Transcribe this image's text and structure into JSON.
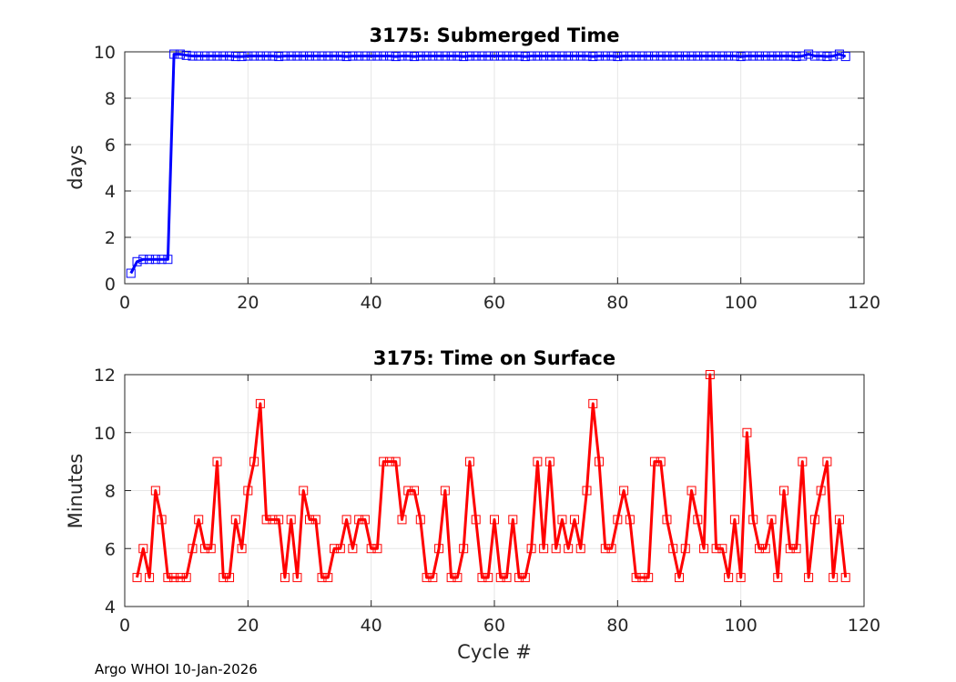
{
  "footer_text": "Argo WHOI 10-Jan-2026",
  "colors": {
    "submerged": "#0000ff",
    "surface": "#ff0000",
    "grid": "#e6e6e6",
    "axis": "#262626"
  },
  "chart_data": [
    {
      "type": "line",
      "title": "3175: Submerged Time",
      "xlabel": "",
      "ylabel": "days",
      "xlim": [
        0,
        120
      ],
      "ylim": [
        0,
        10
      ],
      "xticks": [
        0,
        20,
        40,
        60,
        80,
        100,
        120
      ],
      "yticks": [
        0,
        2,
        4,
        6,
        8,
        10
      ],
      "grid": true,
      "marker": "square",
      "series": [
        {
          "name": "Submerged Time",
          "color": "#0000ff",
          "x": [
            1,
            2,
            3,
            4,
            5,
            6,
            7,
            8,
            9,
            10,
            11,
            12,
            13,
            14,
            15,
            16,
            17,
            18,
            19,
            20,
            21,
            22,
            23,
            24,
            25,
            26,
            27,
            28,
            29,
            30,
            31,
            32,
            33,
            34,
            35,
            36,
            37,
            38,
            39,
            40,
            41,
            42,
            43,
            44,
            45,
            46,
            47,
            48,
            49,
            50,
            51,
            52,
            53,
            54,
            55,
            56,
            57,
            58,
            59,
            60,
            61,
            62,
            63,
            64,
            65,
            66,
            67,
            68,
            69,
            70,
            71,
            72,
            73,
            74,
            75,
            76,
            77,
            78,
            79,
            80,
            81,
            82,
            83,
            84,
            85,
            86,
            87,
            88,
            89,
            90,
            91,
            92,
            93,
            94,
            95,
            96,
            97,
            98,
            99,
            100,
            101,
            102,
            103,
            104,
            105,
            106,
            107,
            108,
            109,
            110,
            111,
            112,
            113,
            114,
            115,
            116,
            117
          ],
          "values": [
            0.45,
            0.95,
            1.05,
            1.05,
            1.05,
            1.05,
            1.05,
            9.9,
            9.9,
            9.85,
            9.82,
            9.82,
            9.82,
            9.82,
            9.82,
            9.82,
            9.82,
            9.8,
            9.8,
            9.82,
            9.82,
            9.82,
            9.82,
            9.82,
            9.8,
            9.82,
            9.82,
            9.82,
            9.82,
            9.82,
            9.82,
            9.82,
            9.82,
            9.82,
            9.82,
            9.8,
            9.82,
            9.82,
            9.82,
            9.82,
            9.82,
            9.82,
            9.82,
            9.8,
            9.82,
            9.82,
            9.8,
            9.82,
            9.82,
            9.82,
            9.82,
            9.82,
            9.82,
            9.82,
            9.8,
            9.82,
            9.82,
            9.82,
            9.82,
            9.82,
            9.82,
            9.82,
            9.82,
            9.82,
            9.8,
            9.82,
            9.82,
            9.82,
            9.82,
            9.82,
            9.82,
            9.82,
            9.82,
            9.82,
            9.82,
            9.8,
            9.82,
            9.82,
            9.82,
            9.8,
            9.82,
            9.82,
            9.82,
            9.82,
            9.82,
            9.82,
            9.82,
            9.82,
            9.82,
            9.82,
            9.82,
            9.82,
            9.82,
            9.82,
            9.82,
            9.82,
            9.82,
            9.82,
            9.82,
            9.8,
            9.82,
            9.82,
            9.82,
            9.82,
            9.82,
            9.82,
            9.82,
            9.82,
            9.8,
            9.82,
            9.9,
            9.82,
            9.82,
            9.8,
            9.82,
            9.9,
            9.8
          ]
        }
      ]
    },
    {
      "type": "line",
      "title": "3175: Time on Surface",
      "xlabel": "Cycle #",
      "ylabel": "Minutes",
      "xlim": [
        0,
        120
      ],
      "ylim": [
        4,
        12
      ],
      "xticks": [
        0,
        20,
        40,
        60,
        80,
        100,
        120
      ],
      "yticks": [
        4,
        6,
        8,
        10,
        12
      ],
      "grid": true,
      "marker": "square",
      "series": [
        {
          "name": "Time on Surface",
          "color": "#ff0000",
          "x": [
            2,
            3,
            4,
            5,
            6,
            7,
            8,
            9,
            10,
            11,
            12,
            13,
            14,
            15,
            16,
            17,
            18,
            19,
            20,
            21,
            22,
            23,
            24,
            25,
            26,
            27,
            28,
            29,
            30,
            31,
            32,
            33,
            34,
            35,
            36,
            37,
            38,
            39,
            40,
            41,
            42,
            43,
            44,
            45,
            46,
            47,
            48,
            49,
            50,
            51,
            52,
            53,
            54,
            55,
            56,
            57,
            58,
            59,
            60,
            61,
            62,
            63,
            64,
            65,
            66,
            67,
            68,
            69,
            70,
            71,
            72,
            73,
            74,
            75,
            76,
            77,
            78,
            79,
            80,
            81,
            82,
            83,
            84,
            85,
            86,
            87,
            88,
            89,
            90,
            91,
            92,
            93,
            94,
            95,
            96,
            97,
            98,
            99,
            100,
            101,
            102,
            103,
            104,
            105,
            106,
            107,
            108,
            109,
            110,
            111,
            112,
            113,
            114,
            115,
            116,
            117
          ],
          "values": [
            5,
            6,
            5,
            8,
            7,
            5,
            5,
            5,
            5,
            6,
            7,
            6,
            6,
            9,
            5,
            5,
            7,
            6,
            8,
            9,
            11,
            7,
            7,
            7,
            5,
            7,
            5,
            8,
            7,
            7,
            5,
            5,
            6,
            6,
            7,
            6,
            7,
            7,
            6,
            6,
            9,
            9,
            9,
            7,
            8,
            8,
            7,
            5,
            5,
            6,
            8,
            5,
            5,
            6,
            9,
            7,
            5,
            5,
            7,
            5,
            5,
            7,
            5,
            5,
            6,
            9,
            6,
            9,
            6,
            7,
            6,
            7,
            6,
            8,
            11,
            9,
            6,
            6,
            7,
            8,
            7,
            5,
            5,
            5,
            9,
            9,
            7,
            6,
            5,
            6,
            8,
            7,
            6,
            12,
            6,
            6,
            5,
            7,
            5,
            10,
            7,
            6,
            6,
            7,
            5,
            8,
            6,
            6,
            9,
            5,
            7,
            8,
            9,
            5,
            7,
            5
          ]
        }
      ]
    }
  ]
}
